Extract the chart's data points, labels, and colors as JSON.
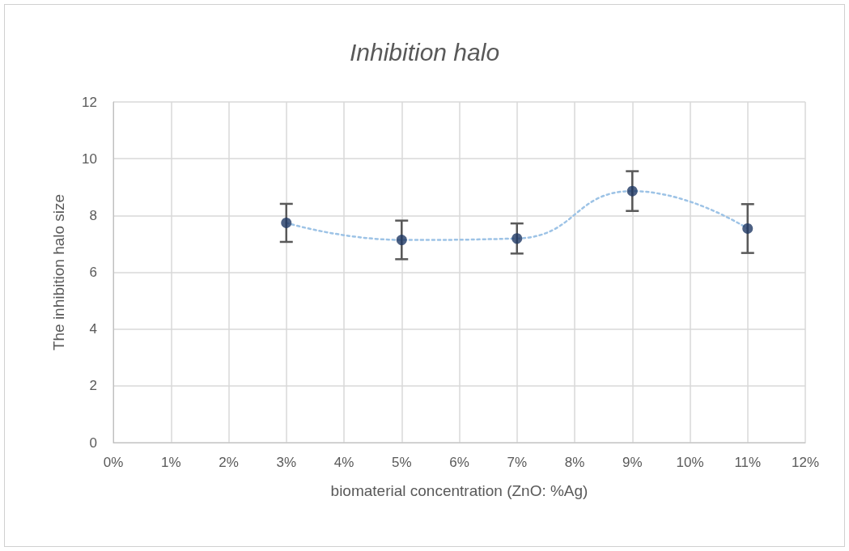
{
  "chart_data": {
    "type": "scatter",
    "title": "Inhibition halo",
    "xlabel": "biomaterial concentration (ZnO: %Ag)",
    "ylabel": "The inhibition halo size",
    "xlim": [
      0,
      12
    ],
    "xticks": [
      {
        "value": 0,
        "label": "0%"
      },
      {
        "value": 1,
        "label": "1%"
      },
      {
        "value": 2,
        "label": "2%"
      },
      {
        "value": 3,
        "label": "3%"
      },
      {
        "value": 4,
        "label": "4%"
      },
      {
        "value": 5,
        "label": "5%"
      },
      {
        "value": 6,
        "label": "6%"
      },
      {
        "value": 7,
        "label": "7%"
      },
      {
        "value": 8,
        "label": "8%"
      },
      {
        "value": 9,
        "label": "9%"
      },
      {
        "value": 10,
        "label": "10%"
      },
      {
        "value": 11,
        "label": "11%"
      },
      {
        "value": 12,
        "label": "12%"
      }
    ],
    "ylim": [
      0,
      12
    ],
    "yticks": [
      0,
      2,
      4,
      6,
      8,
      10,
      12
    ],
    "grid": true,
    "marker": "circle",
    "series": [
      {
        "color": "#1f3864",
        "x": [
          3,
          5,
          7,
          9,
          11
        ],
        "values": [
          7.74,
          7.14,
          7.19,
          8.86,
          7.54
        ],
        "errors": [
          0.67,
          0.68,
          0.53,
          0.7,
          0.86
        ]
      },
      {
        "type": "line",
        "color": "#9dc3e6",
        "line_style": "dotted",
        "marker": "none",
        "x": [
          3,
          5,
          7,
          9,
          11
        ],
        "values": [
          7.74,
          7.14,
          7.19,
          8.86,
          7.54
        ]
      }
    ]
  }
}
